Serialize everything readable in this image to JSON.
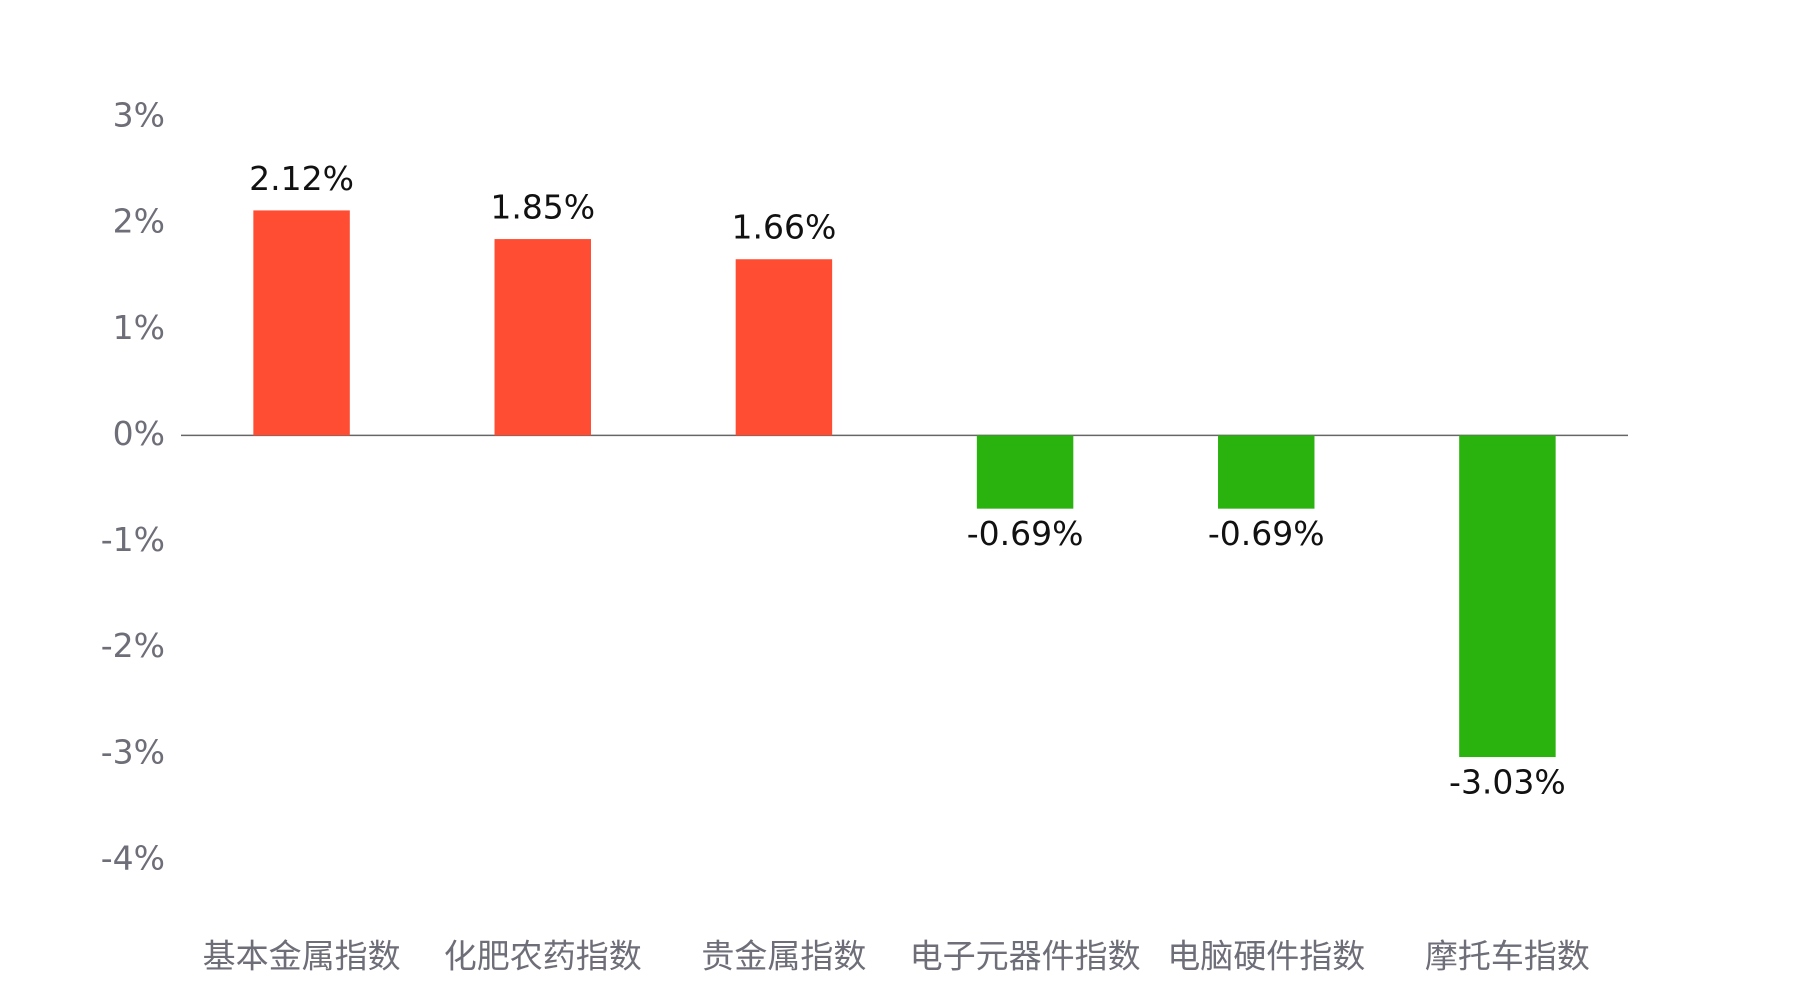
{
  "chart_data": {
    "type": "bar",
    "categories": [
      "基本金属指数",
      "化肥农药指数",
      "贵金属指数",
      "电子元器件指数",
      "电脑硬件指数",
      "摩托车指数"
    ],
    "values": [
      2.12,
      1.85,
      1.66,
      -0.69,
      -0.69,
      -3.03
    ],
    "value_labels": [
      "2.12%",
      "1.85%",
      "1.66%",
      "-0.69%",
      "-0.69%",
      "-3.03%"
    ],
    "colors": [
      "#ff4d33",
      "#ff4d33",
      "#ff4d33",
      "#2ab30f",
      "#2ab30f",
      "#2ab30f"
    ],
    "ylim": [
      -4,
      3
    ],
    "yticks": [
      {
        "value": 3,
        "label": "3%"
      },
      {
        "value": 2,
        "label": "2%"
      },
      {
        "value": 1,
        "label": "1%"
      },
      {
        "value": 0,
        "label": "0%"
      },
      {
        "value": -1,
        "label": "-1%"
      },
      {
        "value": -2,
        "label": "-2%"
      },
      {
        "value": -3,
        "label": "-3%"
      },
      {
        "value": -4,
        "label": "-4%"
      }
    ],
    "grid": false
  }
}
